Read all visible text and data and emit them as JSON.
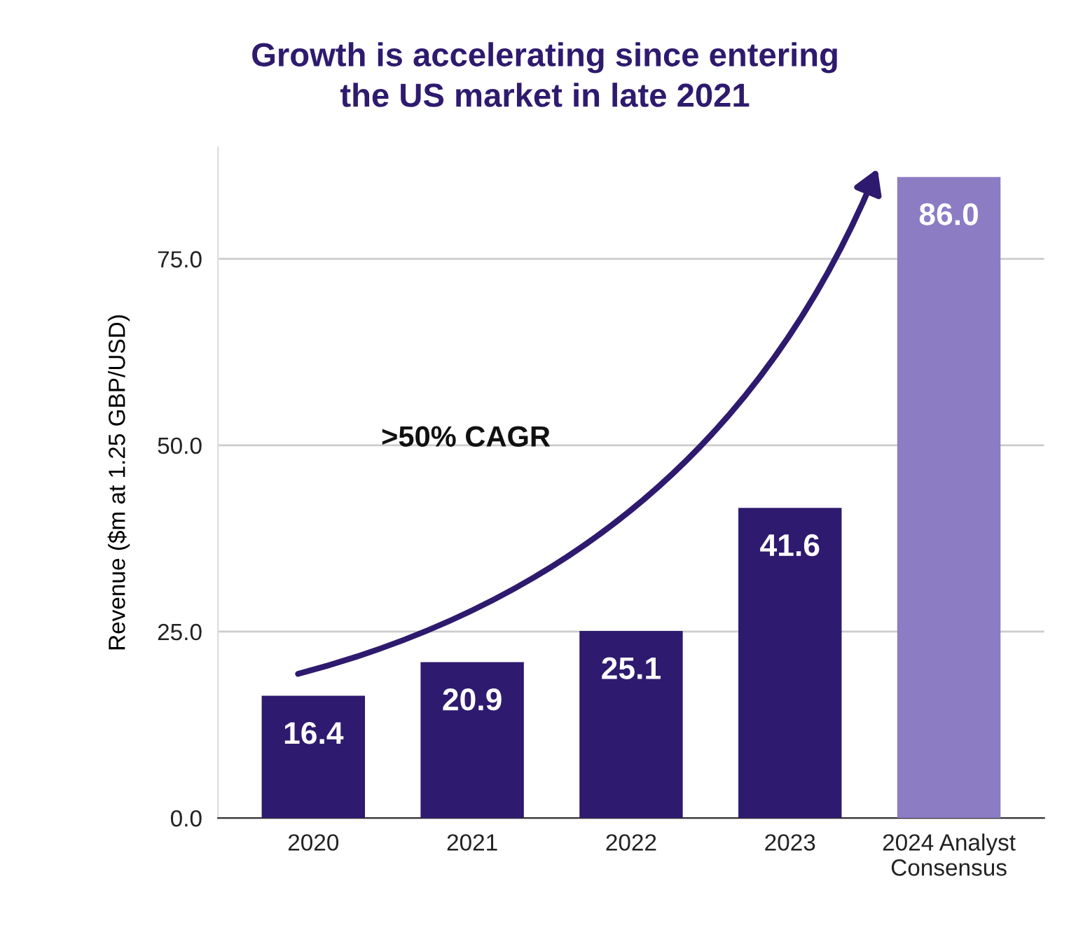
{
  "chart_data": {
    "type": "bar",
    "title": "Growth is accelerating since entering\nthe US market in late 2021",
    "ylabel": "Revenue ($m at 1.25 GBP/USD)",
    "categories": [
      "2020",
      "2021",
      "2022",
      "2023",
      "2024 Analyst\nConsensus"
    ],
    "values": [
      16.4,
      20.9,
      25.1,
      41.6,
      86.0
    ],
    "colors": [
      "#2e1a6e",
      "#2e1a6e",
      "#2e1a6e",
      "#2e1a6e",
      "#8b7cc4"
    ],
    "value_labels": [
      "16.4",
      "20.9",
      "25.1",
      "41.6",
      "86.0"
    ],
    "ylim": [
      0,
      90
    ],
    "yticks": [
      {
        "value": 0,
        "label": "0.0"
      },
      {
        "value": 25,
        "label": "25.0"
      },
      {
        "value": 50,
        "label": "50.0"
      },
      {
        "value": 75,
        "label": "75.0"
      }
    ],
    "grid": "y",
    "annotations": [
      ">50% CAGR"
    ]
  }
}
